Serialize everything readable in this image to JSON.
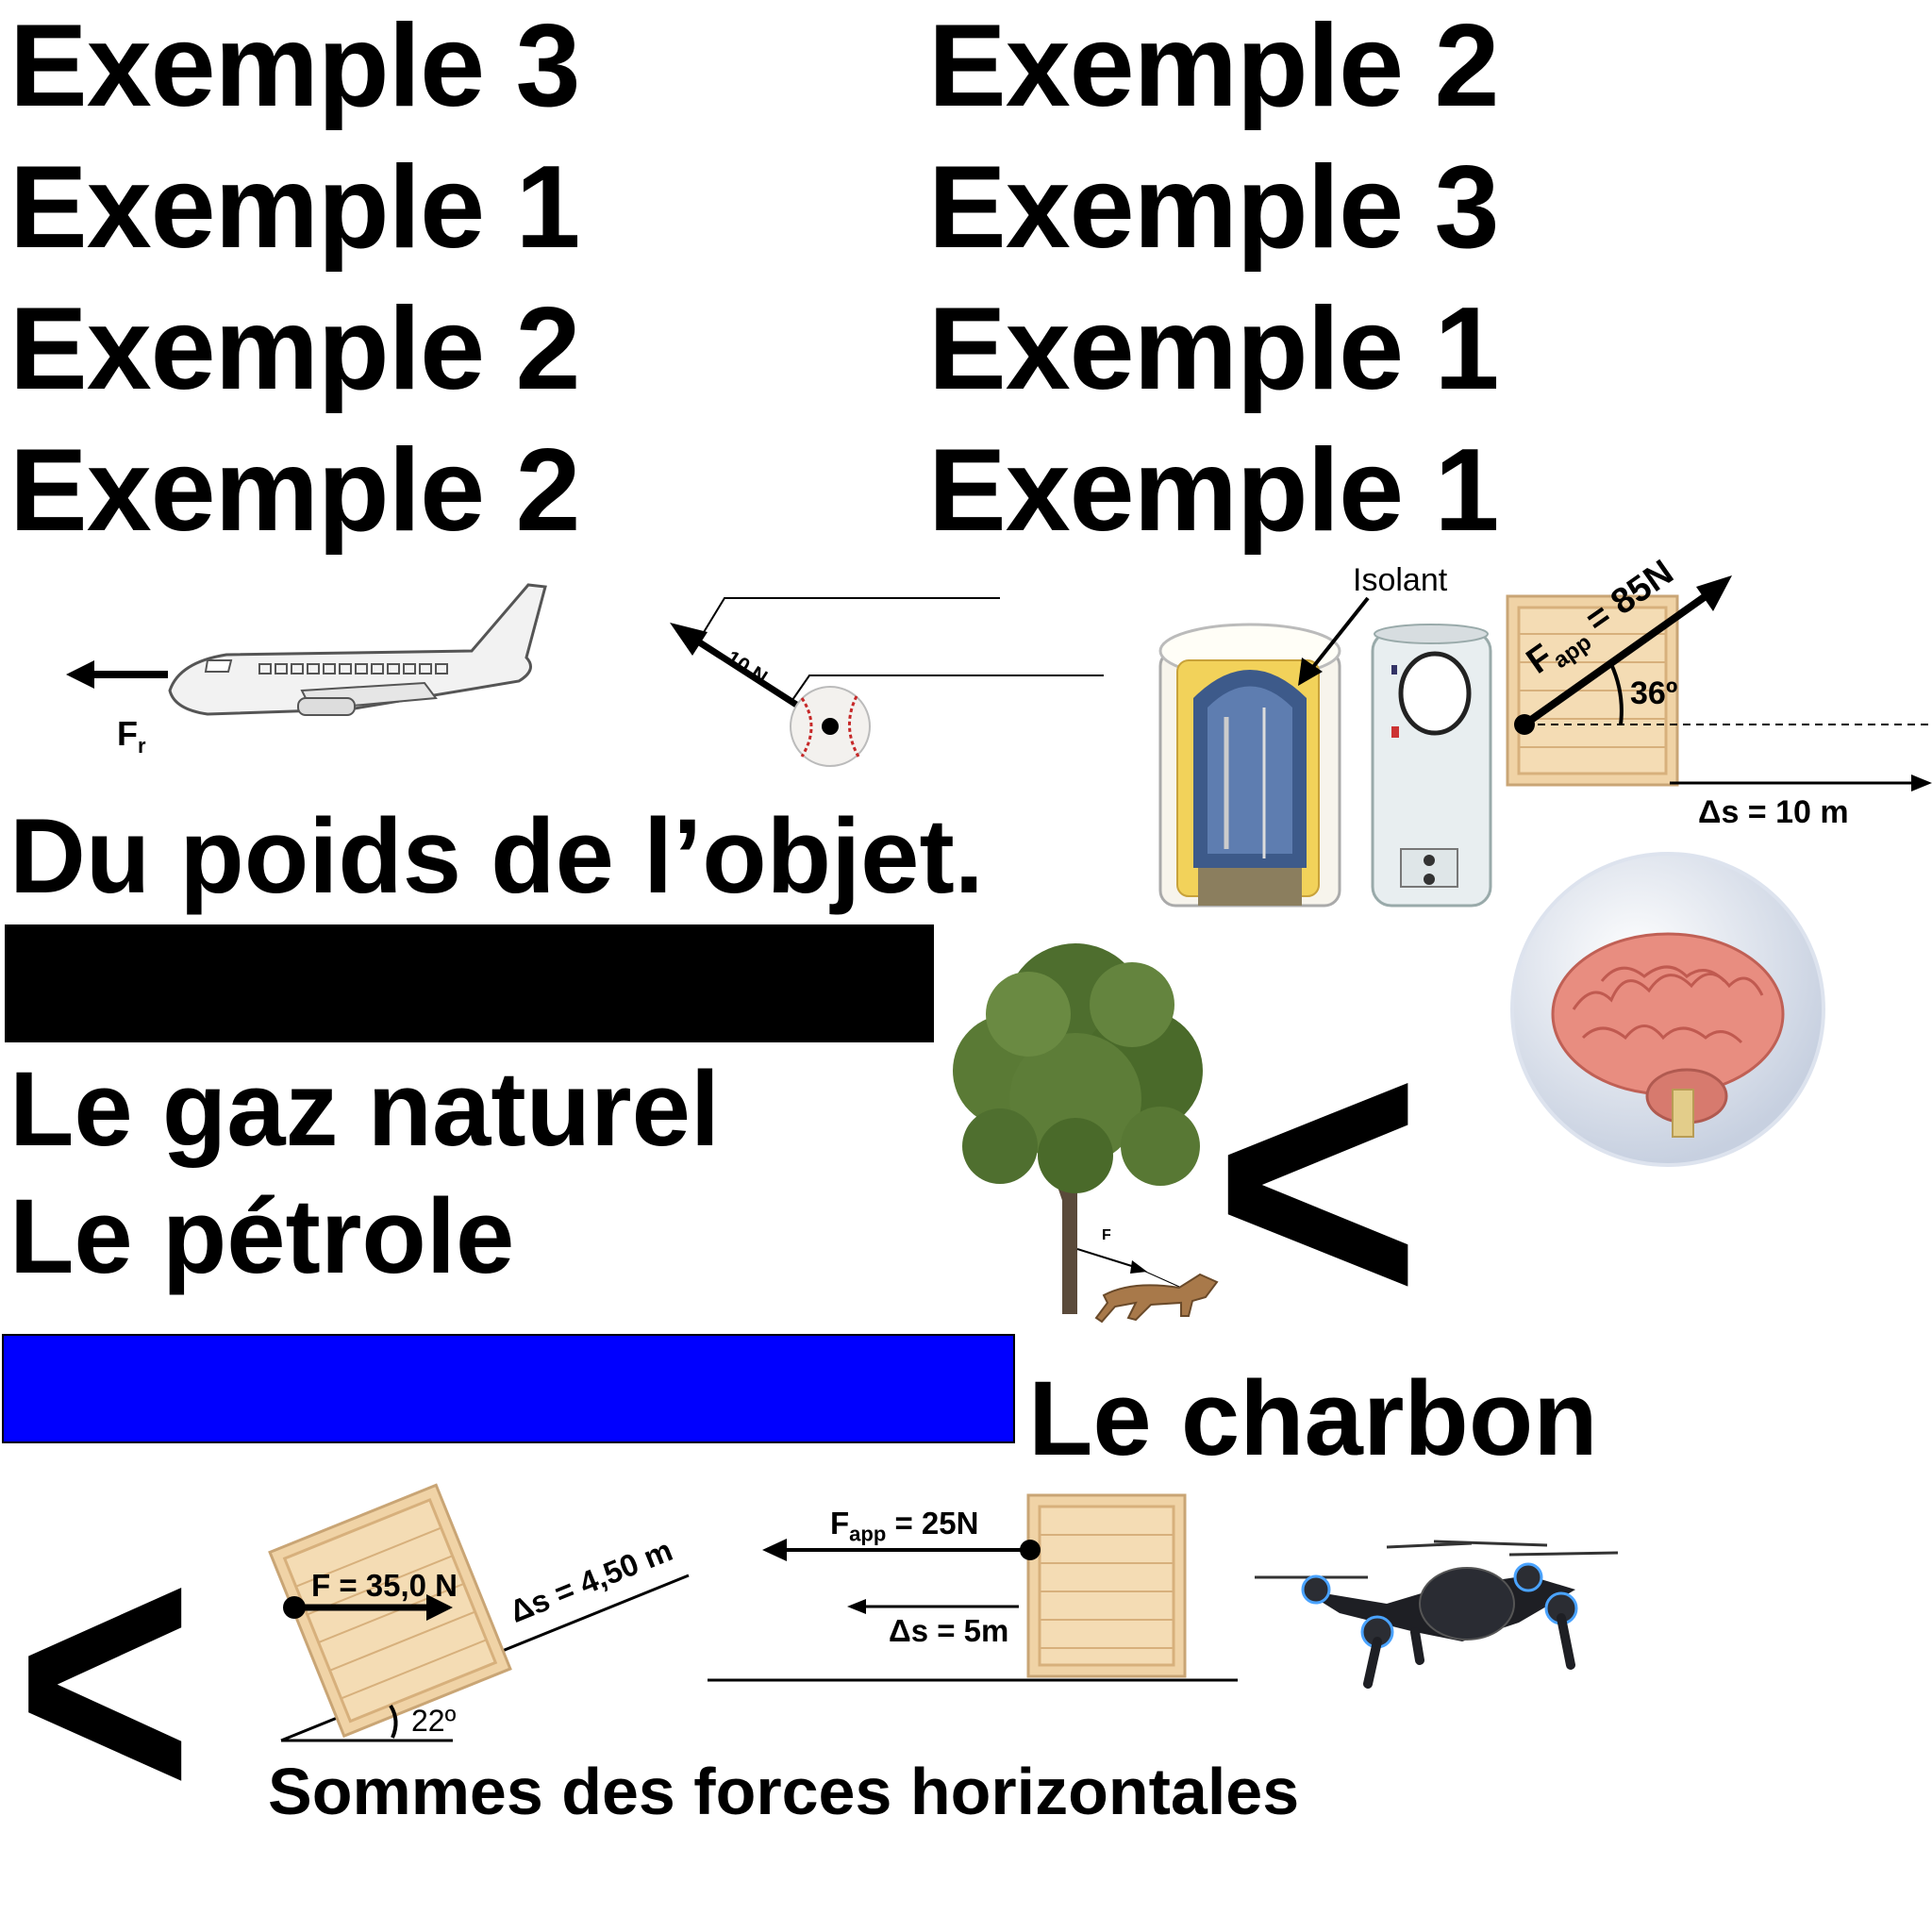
{
  "examples_left": [
    "Exemple 3",
    "Exemple 1",
    "Exemple 2",
    "Exemple 2"
  ],
  "examples_right": [
    "Exemple 2",
    "Exemple 3",
    "Exemple 1",
    "Exemple 1"
  ],
  "answers": {
    "poids": "Du poids de l’objet.",
    "gaz": "Le gaz naturel",
    "petrole": "Le pétrole",
    "charbon": "Le charbon",
    "sommes": "Sommes des forces horizontales"
  },
  "labels": {
    "fr": "F",
    "fr_sub": "r",
    "ball_force": "10 N",
    "isolant": "Isolant",
    "fapp85": "F",
    "fapp85_sub": "app",
    "fapp85_val": " = 85N",
    "angle36": "36º",
    "ds10": "Δs = 10 m",
    "tree_force": "F",
    "f35": "F = 35,0 N",
    "ds450": "Δs = 4,50 m",
    "angle22": "22º",
    "fapp25": "F",
    "fapp25_sub": "app",
    "fapp25_val": " = 25N",
    "ds5": "Δs = 5m"
  },
  "symbols": {
    "less_than": "<"
  },
  "colors": {
    "black_bar": "#000000",
    "blue_bar": "#0000ff",
    "crate": "#f0d3a6",
    "crate_dark": "#d9b27c"
  },
  "icons": [
    "airplane-icon",
    "baseball-icon",
    "water-heater-icon",
    "brain-icon",
    "tree-icon",
    "dog-icon",
    "drone-icon",
    "crate-icon"
  ]
}
